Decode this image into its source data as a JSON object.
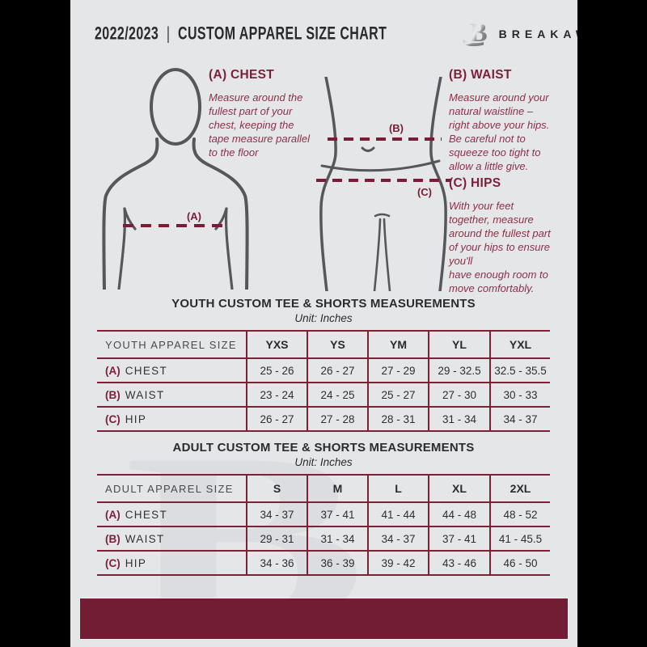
{
  "header": {
    "year": "2022/2023",
    "divider": "|",
    "title": "CUSTOM APPAREL SIZE CHART",
    "brand": "BREAKAWAY",
    "logo_letter": "B"
  },
  "measure_guide": {
    "chest": {
      "heading": "(A) CHEST",
      "body": "Measure around the\nfullest part of your\nchest, keeping the\ntape measure parallel\nto the floor"
    },
    "waist": {
      "heading": "(B) WAIST",
      "body": "Measure around your\nnatural waistline –\nright above your hips.\nBe careful not to\nsqueeze too tight to\nallow a little give."
    },
    "hips": {
      "heading": "(C) HIPS",
      "body": "With your feet\ntogether, measure\naround the fullest part\nof your hips to ensure\nyou'll\nhave enough room to\nmove comfortably."
    }
  },
  "figure_labels": {
    "chest": "(A)",
    "waist": "(B)",
    "hips": "(C)"
  },
  "tables": [
    {
      "title": "YOUTH CUSTOM TEE & SHORTS MEASUREMENTS",
      "unit": "Unit: Inches",
      "columns": [
        "YOUTH APPAREL SIZE",
        "YXS",
        "YS",
        "YM",
        "YL",
        "YXL"
      ],
      "rows": [
        {
          "prefix": "(A)",
          "label": "CHEST",
          "values": [
            "25 - 26",
            "26 - 27",
            "27 - 29",
            "29 - 32.5",
            "32.5 - 35.5"
          ]
        },
        {
          "prefix": "(B)",
          "label": "WAIST",
          "values": [
            "23 - 24",
            "24 - 25",
            "25 - 27",
            "27 - 30",
            "30 - 33"
          ]
        },
        {
          "prefix": "(C)",
          "label": "HIP",
          "values": [
            "26 - 27",
            "27 - 28",
            "28 - 31",
            "31 - 34",
            "34 - 37"
          ]
        }
      ]
    },
    {
      "title": "ADULT CUSTOM TEE & SHORTS MEASUREMENTS",
      "unit": "Unit: Inches",
      "columns": [
        "ADULT APPAREL SIZE",
        "S",
        "M",
        "L",
        "XL",
        "2XL"
      ],
      "rows": [
        {
          "prefix": "(A)",
          "label": "CHEST",
          "values": [
            "34 - 37",
            "37 - 41",
            "41 - 44",
            "44 - 48",
            "48 - 52"
          ]
        },
        {
          "prefix": "(B)",
          "label": "WAIST",
          "values": [
            "29 - 31",
            "31 - 34",
            "34 - 37",
            "37 - 41",
            "41 - 45.5"
          ]
        },
        {
          "prefix": "(C)",
          "label": "HIP",
          "values": [
            "34 - 36",
            "36 - 39",
            "39 - 42",
            "43 - 46",
            "46 - 50"
          ]
        }
      ]
    }
  ],
  "watermark_letter": "B",
  "colors": {
    "maroon": "#731d34",
    "rule_maroon": "#7e2136",
    "dash_maroon": "#7a1c33",
    "guide_text": "#8d3048",
    "body_outline": "#56575b",
    "page_background": "#e5e6e8",
    "text_dark": "#2c2c2e"
  }
}
